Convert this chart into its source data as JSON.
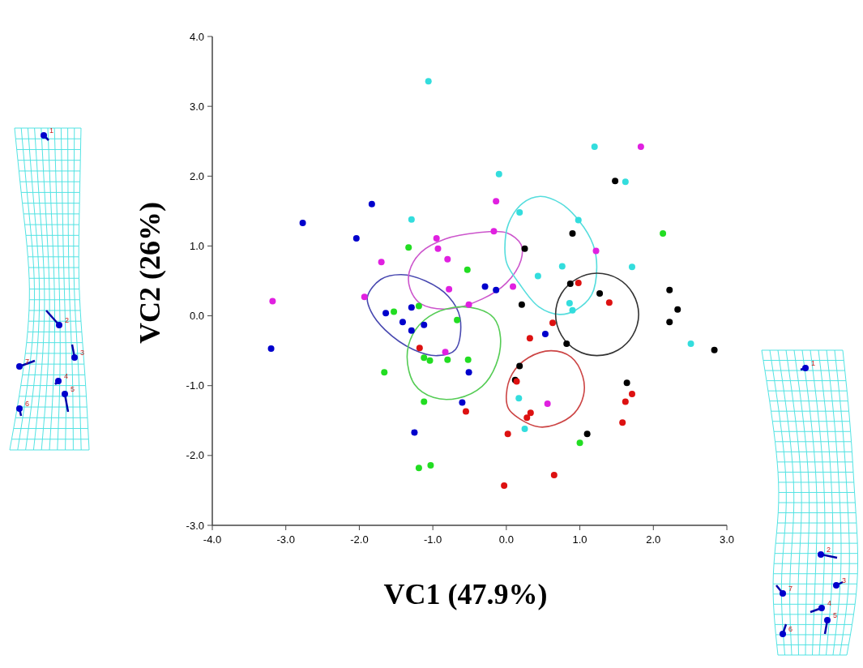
{
  "chart_data": {
    "type": "scatter",
    "xlabel": "VC1 (47.9%)",
    "ylabel": "VC2 (26%)",
    "xlim": [
      -4,
      3
    ],
    "ylim": [
      -3,
      4
    ],
    "xticks": [
      {
        "value": -4,
        "label": "-4.0"
      },
      {
        "value": -3,
        "label": "-3.0"
      },
      {
        "value": -2,
        "label": "-2.0"
      },
      {
        "value": -1,
        "label": "-1.0"
      },
      {
        "value": 0,
        "label": "0.0"
      },
      {
        "value": 1,
        "label": "1.0"
      },
      {
        "value": 2,
        "label": "2.0"
      },
      {
        "value": 3,
        "label": "3.0"
      }
    ],
    "yticks": [
      {
        "value": -3,
        "label": "-3.0"
      },
      {
        "value": -2,
        "label": "-2.0"
      },
      {
        "value": -1,
        "label": "-1.0"
      },
      {
        "value": 0,
        "label": "0.0"
      },
      {
        "value": 1,
        "label": "1.0"
      },
      {
        "value": 2,
        "label": "2.0"
      },
      {
        "value": 3,
        "label": "3.0"
      },
      {
        "value": 4,
        "label": "4.0"
      }
    ],
    "grid": false,
    "marker": "circle",
    "annotations": [
      "1",
      "2",
      "3",
      "4",
      "5",
      "6",
      "7",
      "1",
      "2",
      "3",
      "4",
      "5",
      "6",
      "7"
    ],
    "series": [
      {
        "color": "#0000cc",
        "x": [
          -1.83,
          -2.77,
          -2.04,
          -0.29,
          -0.14,
          0.53,
          -1.64,
          -1.29,
          -1.41,
          -1.12,
          -1.29,
          -3.2,
          -0.51,
          -0.6,
          -1.25
        ],
        "values": [
          1.6,
          1.33,
          1.11,
          0.42,
          0.37,
          -0.26,
          0.04,
          0.12,
          -0.09,
          -0.13,
          -0.21,
          -0.47,
          -0.81,
          -1.24,
          -1.67
        ]
      },
      {
        "color": "#e020e0",
        "x": [
          -0.95,
          -0.93,
          -0.8,
          -1.7,
          -0.78,
          -3.18,
          -1.93,
          1.83,
          -0.14,
          -0.17,
          1.22,
          0.09,
          -0.51,
          -0.83,
          0.56
        ],
        "values": [
          1.11,
          0.96,
          0.81,
          0.77,
          0.38,
          0.21,
          0.27,
          2.42,
          1.64,
          1.21,
          0.93,
          0.42,
          0.16,
          -0.52,
          -1.26
        ]
      },
      {
        "color": "#22dd22",
        "x": [
          -1.33,
          -0.53,
          2.13,
          -1.53,
          -1.19,
          -0.67,
          -1.12,
          -1.04,
          -0.8,
          -0.52,
          -1.66,
          -1.12,
          -1.19,
          -1.03,
          1.0
        ],
        "values": [
          0.98,
          0.66,
          1.18,
          0.06,
          0.14,
          -0.06,
          -0.6,
          -0.64,
          -0.63,
          -0.63,
          -0.81,
          -1.23,
          -2.18,
          -2.14,
          -1.82
        ]
      },
      {
        "color": "#33dddd",
        "x": [
          -1.06,
          -1.29,
          1.2,
          -0.1,
          1.62,
          0.18,
          0.98,
          0.76,
          1.71,
          0.43,
          0.86,
          0.9,
          2.51,
          0.17,
          0.25
        ],
        "values": [
          3.36,
          1.38,
          2.42,
          2.03,
          1.92,
          1.48,
          1.37,
          0.71,
          0.7,
          0.57,
          0.18,
          0.08,
          -0.4,
          -1.18,
          -1.62
        ]
      },
      {
        "color": "#000000",
        "x": [
          1.48,
          0.9,
          0.25,
          0.87,
          2.22,
          0.21,
          1.27,
          2.33,
          2.22,
          0.82,
          2.83,
          0.18,
          0.12,
          1.64,
          1.1
        ],
        "values": [
          1.93,
          1.18,
          0.96,
          0.46,
          0.37,
          0.16,
          0.32,
          0.09,
          -0.09,
          -0.4,
          -0.49,
          -0.72,
          -0.92,
          -0.96,
          -1.69
        ]
      },
      {
        "color": "#dd1111",
        "x": [
          0.98,
          1.4,
          0.63,
          0.32,
          0.14,
          1.71,
          1.62,
          0.33,
          0.28,
          1.58,
          0.02,
          0.65,
          -0.03,
          -1.18,
          -0.55
        ],
        "values": [
          0.47,
          0.19,
          -0.1,
          -0.32,
          -0.94,
          -1.12,
          -1.23,
          -1.39,
          -1.46,
          -1.53,
          -1.69,
          -2.28,
          -2.43,
          -0.46,
          -1.37
        ]
      }
    ]
  }
}
